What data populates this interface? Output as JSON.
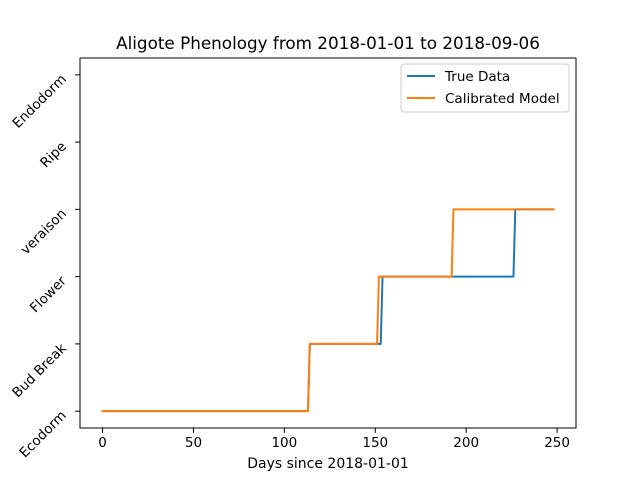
{
  "chart_data": {
    "type": "line",
    "title": "Aligote Phenology from 2018-01-01 to 2018-09-06",
    "xlabel": "Days since 2018-01-01",
    "ylabel": "",
    "xlim": [
      -12.4,
      260.4
    ],
    "ylim": [
      -0.25,
      5.25
    ],
    "x_ticks": [
      0,
      50,
      100,
      150,
      200,
      250
    ],
    "y_categories": [
      "Ecodorm",
      "Bud Break",
      "Flower",
      "veraison",
      "Ripe",
      "Endodorm"
    ],
    "grid": false,
    "legend_position": "top-right",
    "series": [
      {
        "name": "True Data",
        "color": "#1f77b4",
        "x": [
          0,
          113,
          114,
          153,
          154,
          226,
          227,
          248
        ],
        "y": [
          0,
          0,
          1,
          1,
          2,
          2,
          3,
          3
        ]
      },
      {
        "name": "Calibrated Model",
        "color": "#ff7f0e",
        "x": [
          0,
          113,
          114,
          151,
          152,
          192,
          193,
          248
        ],
        "y": [
          0,
          0,
          1,
          1,
          2,
          2,
          3,
          3
        ]
      }
    ]
  }
}
